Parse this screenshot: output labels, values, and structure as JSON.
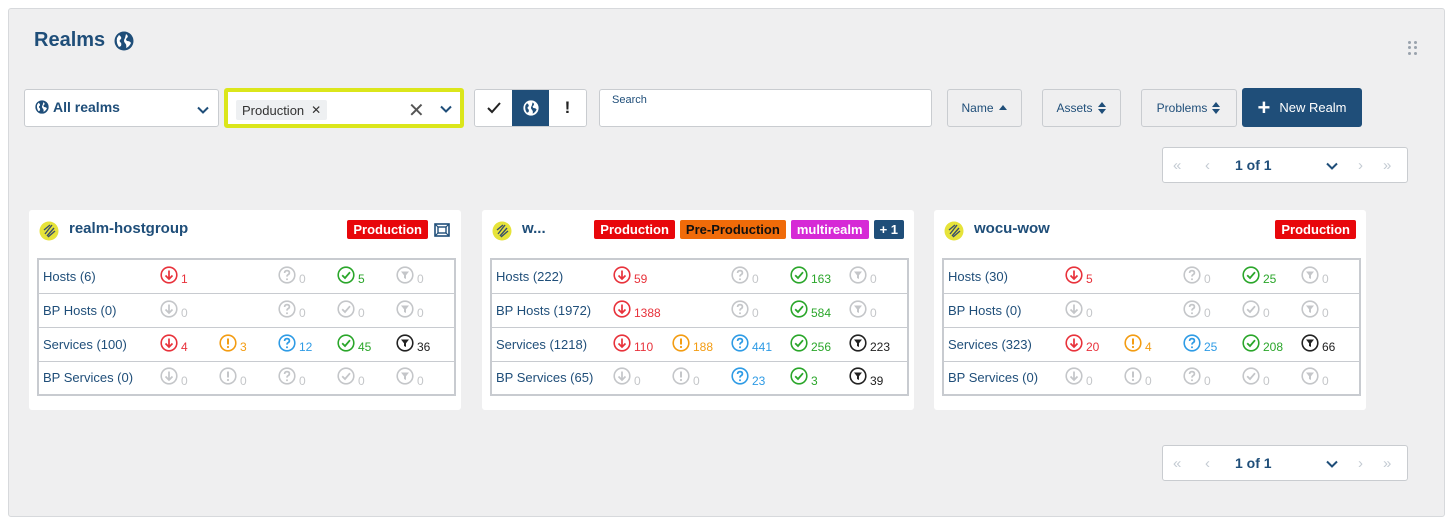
{
  "header": {
    "title": "Realms",
    "title_icon": "globe-icon"
  },
  "filters": {
    "realm_select": {
      "value": "All realms",
      "icon": "globe-icon"
    },
    "tag_select": {
      "chips": [
        "Production"
      ],
      "clear": "×"
    },
    "view_toggle": [
      "check-icon",
      "globe-icon",
      "exclamation-icon"
    ],
    "exclamation_label": "!",
    "search": {
      "placeholder": "Search"
    },
    "sort": {
      "name": "Name",
      "assets": "Assets",
      "problems": "Problems"
    },
    "new_realm": "New Realm"
  },
  "pagination": {
    "label": "1 of 1"
  },
  "cards": [
    {
      "title": "realm-hostgroup",
      "badges": [
        "Production"
      ],
      "rows": [
        {
          "label": "Hosts (6)",
          "values": [
            "1",
            "",
            "0",
            "5",
            "0"
          ]
        },
        {
          "label": "BP Hosts (0)",
          "values": [
            "0",
            "",
            "0",
            "0",
            "0"
          ]
        },
        {
          "label": "Services (100)",
          "values": [
            "4",
            "3",
            "12",
            "45",
            "36"
          ]
        },
        {
          "label": "BP Services (0)",
          "values": [
            "0",
            "0",
            "0",
            "0",
            "0"
          ]
        }
      ]
    },
    {
      "title": "w...",
      "badges": [
        "Production",
        "Pre-Production",
        "multirealm",
        "+ 1"
      ],
      "rows": [
        {
          "label": "Hosts (222)",
          "values": [
            "59",
            "",
            "0",
            "163",
            "0"
          ]
        },
        {
          "label": "BP Hosts (1972)",
          "values": [
            "1388",
            "",
            "0",
            "584",
            "0"
          ]
        },
        {
          "label": "Services (1218)",
          "values": [
            "110",
            "188",
            "441",
            "256",
            "223"
          ]
        },
        {
          "label": "BP Services (65)",
          "values": [
            "0",
            "0",
            "23",
            "3",
            "39"
          ]
        }
      ]
    },
    {
      "title": "wocu-wow",
      "badges": [
        "Production"
      ],
      "rows": [
        {
          "label": "Hosts (30)",
          "values": [
            "5",
            "",
            "0",
            "25",
            "0"
          ]
        },
        {
          "label": "BP Hosts (0)",
          "values": [
            "0",
            "",
            "0",
            "0",
            "0"
          ]
        },
        {
          "label": "Services (323)",
          "values": [
            "20",
            "4",
            "25",
            "208",
            "66"
          ]
        },
        {
          "label": "BP Services (0)",
          "values": [
            "0",
            "0",
            "0",
            "0",
            "0"
          ]
        }
      ]
    }
  ],
  "colors": {
    "primary": "#1f4e79",
    "highlight": "#dbe61b",
    "down": "#e8323b",
    "warning": "#f39c12",
    "unknown": "#2e9be5",
    "ok": "#2aa62a",
    "filtered": "#222222",
    "zero": "#c4c6c9"
  }
}
